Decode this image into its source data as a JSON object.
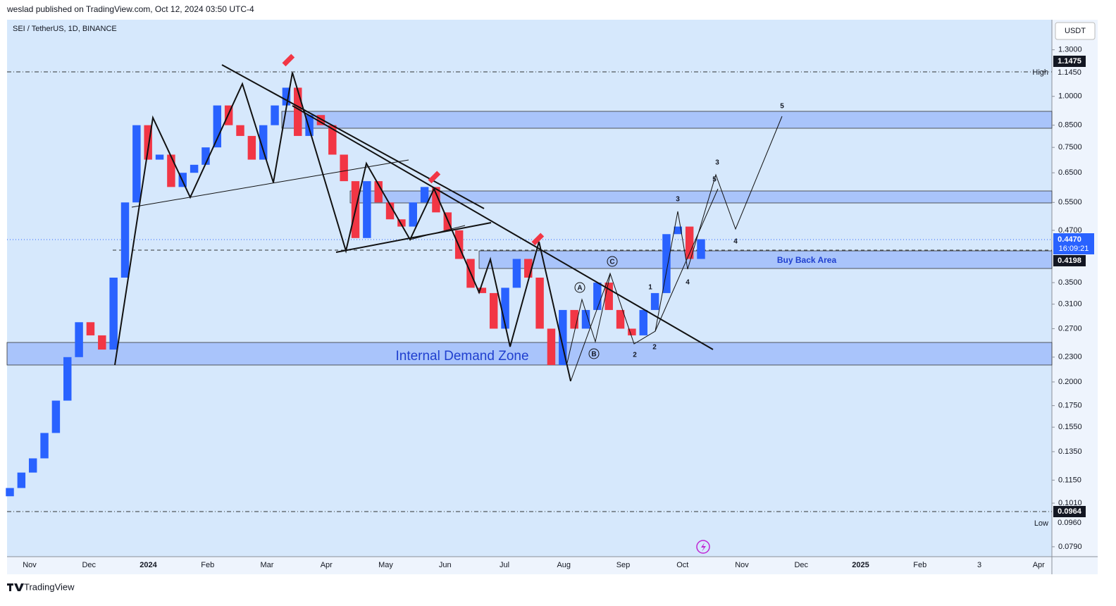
{
  "header": {
    "publisher": "weslad published on TradingView.com, Oct 12, 2024 03:50 UTC-4",
    "symbol": "SEI / TetherUS, 1D, BINANCE",
    "currency": "USDT",
    "logo": "TradingView"
  },
  "chart_data": {
    "type": "candlestick",
    "scale": "log",
    "ylim": [
      0.0747,
      1.54
    ],
    "yticks": [
      {
        "value": 1.3,
        "label": "1.3000"
      },
      {
        "value": 1.0,
        "label": "1.0000"
      },
      {
        "value": 0.85,
        "label": "0.8500"
      },
      {
        "value": 0.75,
        "label": "0.7500"
      },
      {
        "value": 0.65,
        "label": "0.6500"
      },
      {
        "value": 0.55,
        "label": "0.5500"
      },
      {
        "value": 0.47,
        "label": "0.4700"
      },
      {
        "value": 0.35,
        "label": "0.3500"
      },
      {
        "value": 0.31,
        "label": "0.3100"
      },
      {
        "value": 0.27,
        "label": "0.2700"
      },
      {
        "value": 0.23,
        "label": "0.2300"
      },
      {
        "value": 0.2,
        "label": "0.2000"
      },
      {
        "value": 0.175,
        "label": "0.1750"
      },
      {
        "value": 0.155,
        "label": "0.1550"
      },
      {
        "value": 0.135,
        "label": "0.1350"
      },
      {
        "value": 0.115,
        "label": "0.1150"
      },
      {
        "value": 0.101,
        "label": "0.1010"
      },
      {
        "value": 0.079,
        "label": "0.0790"
      }
    ],
    "categories": [
      "Nov",
      "Dec",
      "2024",
      "Feb",
      "Mar",
      "Apr",
      "May",
      "Jun",
      "Jul",
      "Aug",
      "Sep",
      "Oct",
      "Nov",
      "Dec",
      "2025",
      "Feb",
      "3",
      "Apr"
    ],
    "first_open": 0.105,
    "closes": [
      0.11,
      0.12,
      0.13,
      0.15,
      0.18,
      0.23,
      0.28,
      0.26,
      0.24,
      0.36,
      0.55,
      0.85,
      0.7,
      0.72,
      0.6,
      0.65,
      0.68,
      0.75,
      0.95,
      0.85,
      0.8,
      0.7,
      0.85,
      0.95,
      1.05,
      0.8,
      0.9,
      0.85,
      0.72,
      0.62,
      0.45,
      0.62,
      0.55,
      0.5,
      0.48,
      0.55,
      0.6,
      0.52,
      0.47,
      0.4,
      0.34,
      0.33,
      0.27,
      0.34,
      0.4,
      0.36,
      0.27,
      0.22,
      0.3,
      0.27,
      0.3,
      0.35,
      0.3,
      0.27,
      0.26,
      0.3,
      0.33,
      0.46,
      0.48,
      0.4,
      0.447
    ],
    "up_color": "#2962ff",
    "down_color": "#f23645"
  },
  "price_labels": {
    "high_marker": "1.1475",
    "high": "1.1450",
    "high_label": "High",
    "last": "0.4470",
    "countdown": "16:09:21",
    "buy_back": "0.4198",
    "low_marker": "0.0964",
    "low": "0.0960",
    "low_label": "Low"
  },
  "annotations": {
    "buy_back_area": "Buy Back Area",
    "internal_demand_zone": "Internal Demand Zone",
    "waves": [
      "5",
      "3",
      "5",
      "3",
      "4",
      "4",
      "1",
      "2",
      "2",
      "A",
      "B",
      "C"
    ]
  }
}
